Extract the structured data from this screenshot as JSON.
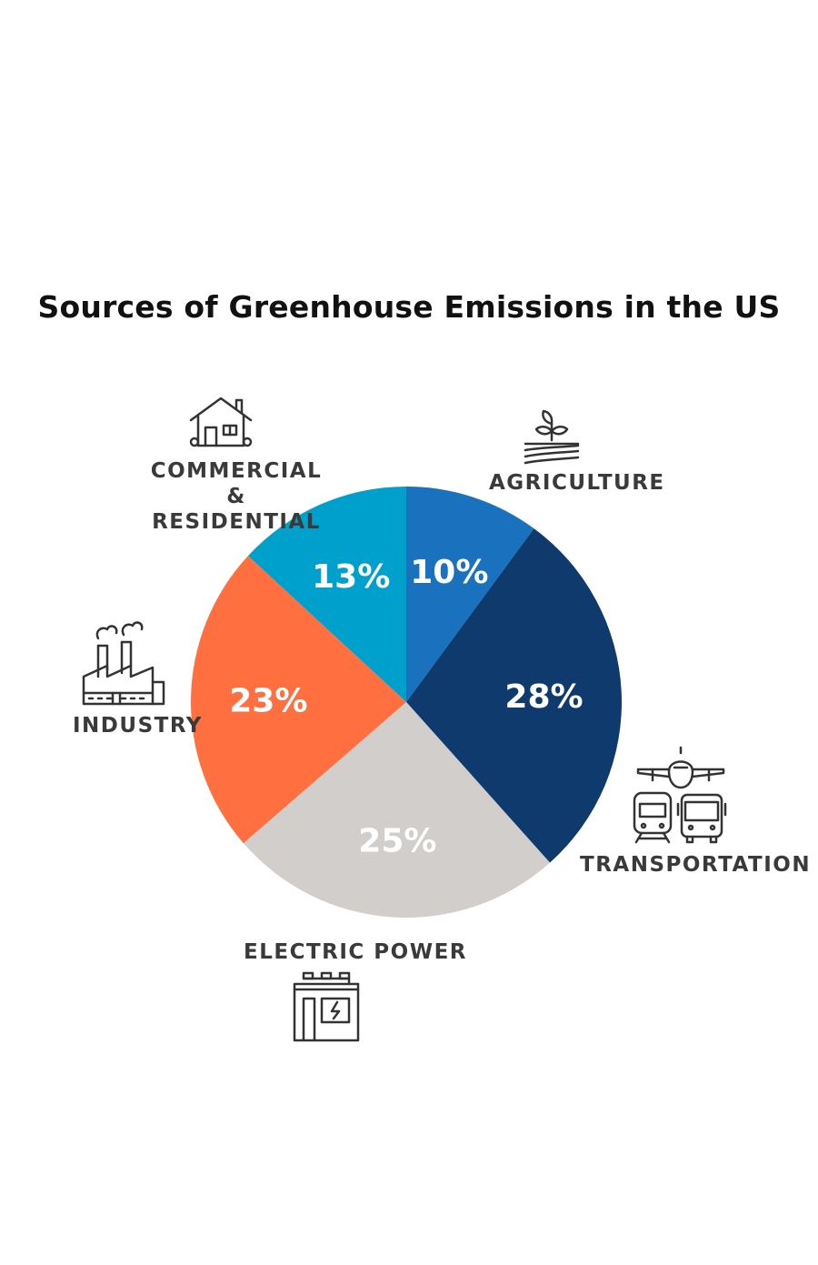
{
  "chart_data": {
    "type": "pie",
    "title": "Sources of Greenhouse Emissions in the US",
    "slices": [
      {
        "label": "AGRICULTURE",
        "value": 10,
        "display": "10%",
        "color": "#1A72BF",
        "text_color": "#ffffff",
        "icon": "plant-field-icon"
      },
      {
        "label": "TRANSPORTATION",
        "value": 28,
        "display": "28%",
        "color": "#0F3A6E",
        "text_color": "#ffffff",
        "icon": "transportation-icon"
      },
      {
        "label": "ELECTRIC POWER",
        "value": 25,
        "display": "25%",
        "color": "#D1CECC",
        "text_color": "#ffffff",
        "icon": "battery-icon"
      },
      {
        "label": "INDUSTRY",
        "value": 23,
        "display": "23%",
        "color": "#FF6F3F",
        "text_color": "#ffffff",
        "icon": "factory-icon"
      },
      {
        "label": "COMMERCIAL & RESIDENTIAL",
        "label_lines": [
          "COMMERCIAL &",
          "RESIDENTIAL"
        ],
        "value": 13,
        "display": "13%",
        "color": "#00A0CC",
        "text_color": "#ffffff",
        "icon": "house-icon"
      }
    ]
  }
}
